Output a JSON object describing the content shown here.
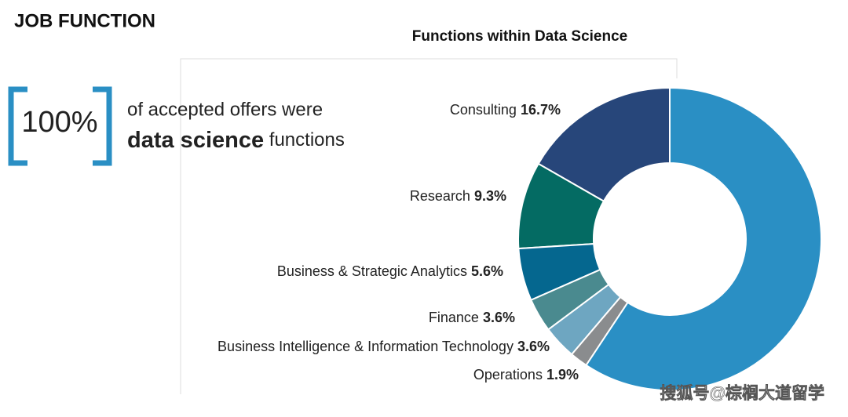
{
  "header": {
    "section": "JOB FUNCTION",
    "stat": "100%",
    "line1": "of accepted offers were",
    "emphasis": "data science",
    "line2_rest": "functions"
  },
  "watermark": "搜狐号@棕榈大道留学",
  "chart_data": {
    "type": "donut",
    "title": "Functions within Data Science",
    "categories": [
      "Consulting",
      "Research",
      "Business & Strategic Analytics",
      "Finance",
      "Business Intelligence & Information Technology",
      "Operations",
      null
    ],
    "values": [
      16.7,
      9.3,
      5.6,
      3.6,
      3.6,
      1.9,
      59.3
    ],
    "value_labels": [
      "16.7%",
      "9.3%",
      "5.6%",
      "3.6%",
      "3.6%",
      "1.9%",
      null
    ],
    "colors": [
      "#27467a",
      "#046b63",
      "#05678f",
      "#4a8a8f",
      "#6ea6c1",
      "#8a8c8e",
      "#2a8fc4"
    ]
  }
}
